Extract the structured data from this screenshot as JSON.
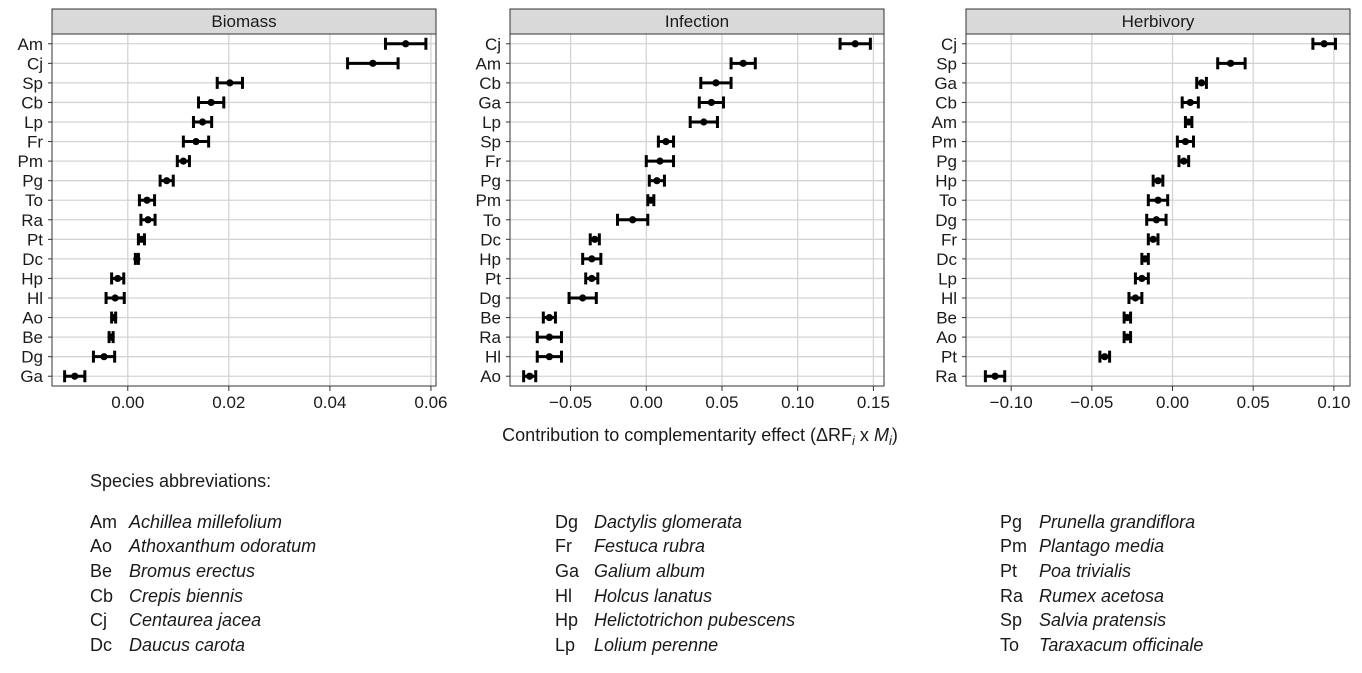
{
  "chart_data": [
    {
      "type": "scatter",
      "title": "Biomass",
      "xlim": [
        -0.015,
        0.061
      ],
      "xticks": [
        0.0,
        0.02,
        0.04,
        0.06
      ],
      "xtick_labels": [
        "0.00",
        "0.02",
        "0.04",
        "0.06"
      ],
      "grid": true,
      "error_bars": true,
      "categories": [
        "Am",
        "Cj",
        "Sp",
        "Cb",
        "Lp",
        "Fr",
        "Pm",
        "Pg",
        "To",
        "Ra",
        "Pt",
        "Dc",
        "Hp",
        "Hl",
        "Ao",
        "Be",
        "Dg",
        "Ga"
      ],
      "values": [
        0.055,
        0.0485,
        0.0202,
        0.0165,
        0.0148,
        0.0135,
        0.011,
        0.0077,
        0.0038,
        0.004,
        0.0027,
        0.0018,
        -0.002,
        -0.0025,
        -0.0028,
        -0.0033,
        -0.0047,
        -0.0105
      ],
      "lower": [
        0.051,
        0.0435,
        0.0177,
        0.014,
        0.013,
        0.011,
        0.0098,
        0.0064,
        0.0023,
        0.0026,
        0.0021,
        0.0015,
        -0.0032,
        -0.0043,
        -0.0032,
        -0.0037,
        -0.0068,
        -0.0125
      ],
      "upper": [
        0.059,
        0.0535,
        0.0227,
        0.019,
        0.0166,
        0.016,
        0.0122,
        0.009,
        0.0053,
        0.0054,
        0.0033,
        0.0021,
        -0.0008,
        -0.0007,
        -0.0024,
        -0.0029,
        -0.0026,
        -0.0085
      ]
    },
    {
      "type": "scatter",
      "title": "Infection",
      "xlim": [
        -0.09,
        0.157
      ],
      "xticks": [
        -0.05,
        0.0,
        0.05,
        0.1,
        0.15
      ],
      "xtick_labels": [
        "−0.05",
        "0.00",
        "0.05",
        "0.10",
        "0.15"
      ],
      "grid": true,
      "error_bars": true,
      "categories": [
        "Cj",
        "Am",
        "Cb",
        "Ga",
        "Lp",
        "Sp",
        "Fr",
        "Pg",
        "Pm",
        "To",
        "Dc",
        "Hp",
        "Pt",
        "Dg",
        "Be",
        "Ra",
        "Hl",
        "Ao"
      ],
      "values": [
        0.138,
        0.064,
        0.046,
        0.043,
        0.038,
        0.013,
        0.009,
        0.007,
        0.003,
        -0.009,
        -0.034,
        -0.036,
        -0.036,
        -0.042,
        -0.064,
        -0.064,
        -0.064,
        -0.077
      ],
      "lower": [
        0.128,
        0.056,
        0.036,
        0.035,
        0.029,
        0.008,
        0.0,
        0.002,
        0.001,
        -0.019,
        -0.037,
        -0.042,
        -0.04,
        -0.051,
        -0.068,
        -0.072,
        -0.072,
        -0.081
      ],
      "upper": [
        0.148,
        0.072,
        0.056,
        0.051,
        0.047,
        0.018,
        0.018,
        0.012,
        0.005,
        0.001,
        -0.031,
        -0.03,
        -0.032,
        -0.033,
        -0.06,
        -0.056,
        -0.056,
        -0.073
      ]
    },
    {
      "type": "scatter",
      "title": "Herbivory",
      "xlim": [
        -0.128,
        0.11
      ],
      "xticks": [
        -0.1,
        -0.05,
        0.0,
        0.05,
        0.1
      ],
      "xtick_labels": [
        "−0.10",
        "−0.05",
        "0.00",
        "0.05",
        "0.10"
      ],
      "grid": true,
      "error_bars": true,
      "categories": [
        "Cj",
        "Sp",
        "Ga",
        "Cb",
        "Am",
        "Pm",
        "Pg",
        "Hp",
        "To",
        "Dg",
        "Fr",
        "Dc",
        "Lp",
        "Hl",
        "Be",
        "Ao",
        "Pt",
        "Ra"
      ],
      "values": [
        0.094,
        0.036,
        0.018,
        0.011,
        0.01,
        0.008,
        0.007,
        -0.009,
        -0.009,
        -0.01,
        -0.012,
        -0.017,
        -0.019,
        -0.023,
        -0.028,
        -0.028,
        -0.042,
        -0.11
      ],
      "lower": [
        0.087,
        0.028,
        0.015,
        0.006,
        0.008,
        0.003,
        0.004,
        -0.012,
        -0.015,
        -0.016,
        -0.015,
        -0.019,
        -0.023,
        -0.027,
        -0.03,
        -0.03,
        -0.045,
        -0.116
      ],
      "upper": [
        0.101,
        0.045,
        0.021,
        0.016,
        0.012,
        0.013,
        0.01,
        -0.006,
        -0.003,
        -0.004,
        -0.009,
        -0.015,
        -0.015,
        -0.019,
        -0.026,
        -0.026,
        -0.039,
        -0.104
      ]
    }
  ],
  "axis": {
    "xlabel_prefix": "Contribution to complementarity effect (",
    "xlabel_delta": "ΔRF",
    "xlabel_i1": "i",
    "xlabel_x": " x ",
    "xlabel_M": "M",
    "xlabel_i2": "i",
    "xlabel_close": ")"
  },
  "legend": {
    "title": "Species abbreviations:",
    "columns": [
      [
        {
          "abbr": "Am",
          "name": "Achillea millefolium"
        },
        {
          "abbr": "Ao",
          "name": "Athoxanthum odoratum"
        },
        {
          "abbr": "Be",
          "name": "Bromus erectus"
        },
        {
          "abbr": "Cb",
          "name": "Crepis biennis"
        },
        {
          "abbr": "Cj",
          "name": "Centaurea jacea"
        },
        {
          "abbr": "Dc",
          "name": "Daucus carota"
        }
      ],
      [
        {
          "abbr": "Dg",
          "name": "Dactylis glomerata"
        },
        {
          "abbr": "Fr",
          "name": "Festuca rubra"
        },
        {
          "abbr": "Ga",
          "name": "Galium album"
        },
        {
          "abbr": "Hl",
          "name": "Holcus lanatus"
        },
        {
          "abbr": "Hp",
          "name": "Helictotrichon pubescens"
        },
        {
          "abbr": "Lp",
          "name": "Lolium perenne"
        }
      ],
      [
        {
          "abbr": "Pg",
          "name": "Prunella grandiflora"
        },
        {
          "abbr": "Pm",
          "name": "Plantago media"
        },
        {
          "abbr": "Pt",
          "name": "Poa trivialis"
        },
        {
          "abbr": "Ra",
          "name": "Rumex acetosa"
        },
        {
          "abbr": "Sp",
          "name": "Salvia pratensis"
        },
        {
          "abbr": "To",
          "name": "Taraxacum officinale"
        }
      ]
    ]
  },
  "colors": {
    "strip": "#d9d9d9",
    "grid": "#d4d4d4",
    "border": "#333333",
    "points": "#000000"
  }
}
